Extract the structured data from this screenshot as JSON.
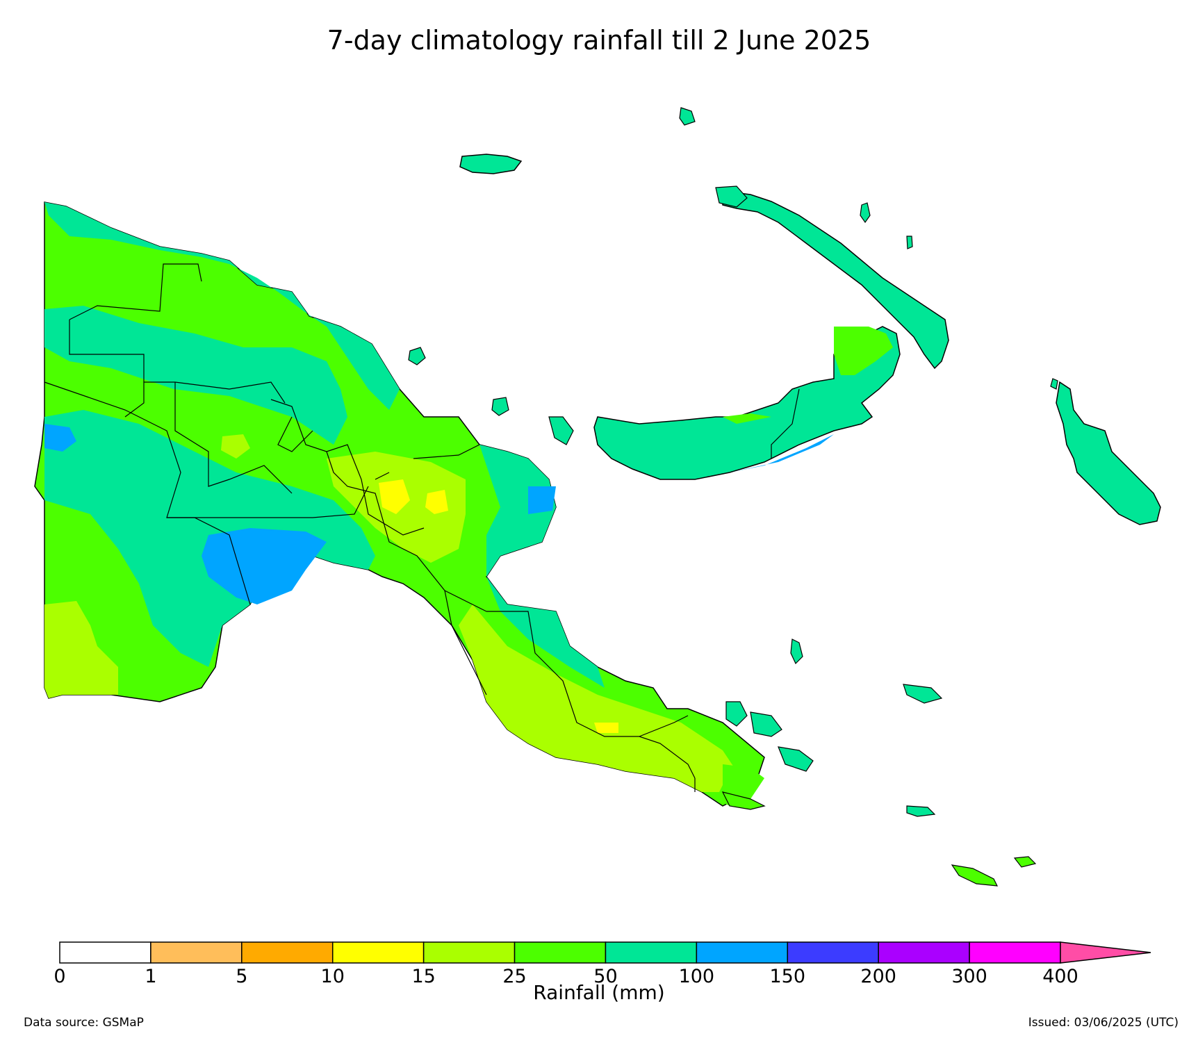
{
  "title": "7-day climatology rainfall till 2 June 2025",
  "colorbar": {
    "label": "Rainfall (mm)",
    "ticks": [
      "0",
      "1",
      "5",
      "10",
      "15",
      "25",
      "50",
      "100",
      "150",
      "200",
      "300",
      "400"
    ],
    "colors": [
      "#ffffff",
      "#ffbe5a",
      "#ffaa00",
      "#ffff00",
      "#aaff00",
      "#4cff00",
      "#00e696",
      "#00a5ff",
      "#3c3cff",
      "#aa00ff",
      "#ff00ff"
    ],
    "extend_color": "#ff4da6"
  },
  "footer": {
    "source": "Data source: GSMaP",
    "issued": "Issued: 03/06/2025 (UTC)"
  },
  "map": {
    "region_colors": {
      "land_50_100": "#00e696",
      "land_25_50": "#4cff00",
      "land_15_25": "#aaff00",
      "land_10_15": "#ffff00",
      "land_100_150": "#00a5ff"
    }
  }
}
